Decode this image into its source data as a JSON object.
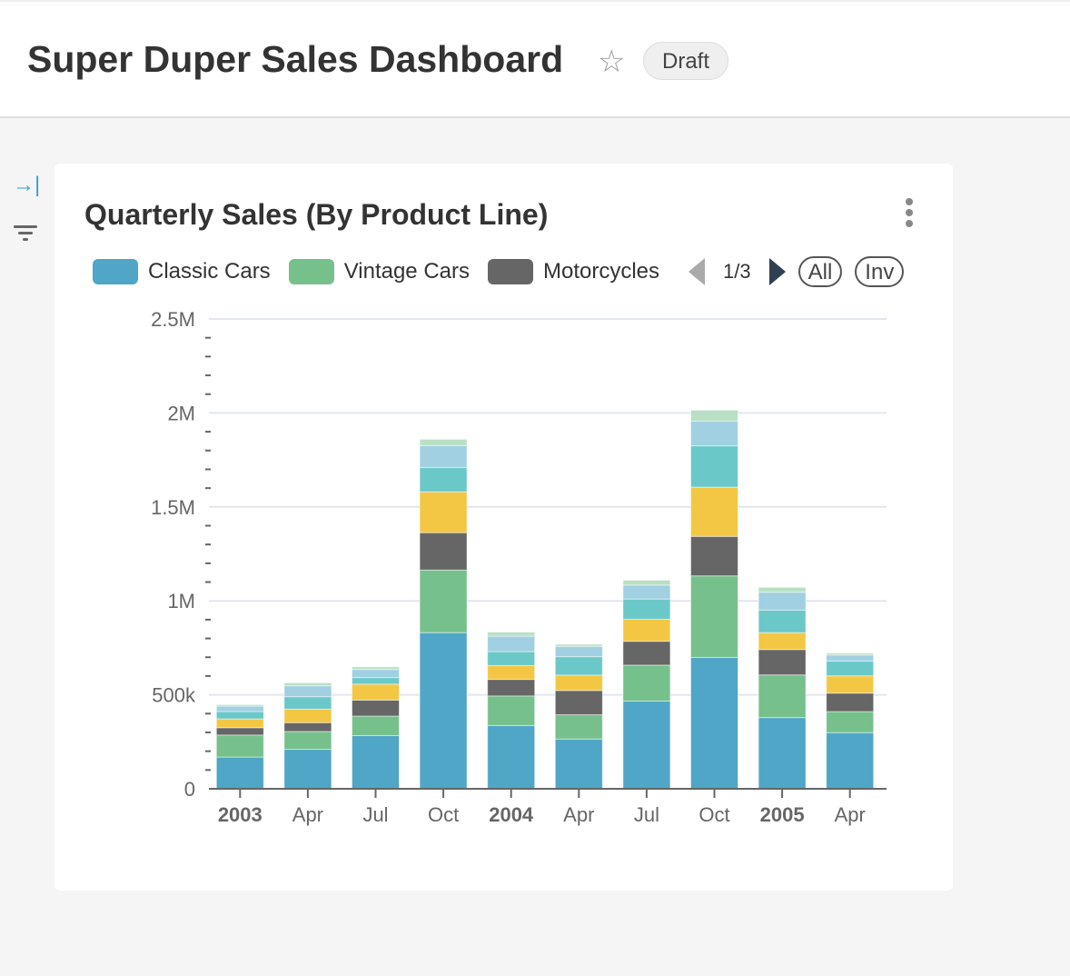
{
  "header": {
    "title": "Super Duper Sales Dashboard",
    "favorite_icon": "star-outline",
    "status_badge": "Draft"
  },
  "sidebar": {
    "collapse_icon": "arrow-to-right",
    "filter_icon": "filter"
  },
  "chart_card": {
    "menu_icon": "vertical-dots",
    "legend": {
      "page": "1/3",
      "all_label": "All",
      "inv_label": "Inv"
    }
  },
  "chart_data": {
    "type": "bar",
    "stacked": true,
    "title": "Quarterly Sales (By Product Line)",
    "categories": [
      "2003",
      "Apr",
      "Jul",
      "Oct",
      "2004",
      "Apr",
      "Jul",
      "Oct",
      "2005",
      "Apr"
    ],
    "bold_categories": [
      "2003",
      "2004",
      "2005"
    ],
    "ylim": [
      0,
      2500000
    ],
    "yticks": [
      {
        "v": 0,
        "label": "0"
      },
      {
        "v": 500000,
        "label": "500k"
      },
      {
        "v": 1000000,
        "label": "1M"
      },
      {
        "v": 1500000,
        "label": "1.5M"
      },
      {
        "v": 2000000,
        "label": "2M"
      },
      {
        "v": 2500000,
        "label": "2.5M"
      }
    ],
    "grid": true,
    "legend_position": "top",
    "series": [
      {
        "name": "Classic Cars",
        "color": "#4fa6c6",
        "values": [
          169000,
          210000,
          283000,
          831000,
          337000,
          265000,
          467000,
          699000,
          379000,
          299000
        ]
      },
      {
        "name": "Vintage Cars",
        "color": "#76c08b",
        "values": [
          117000,
          95000,
          104000,
          333000,
          157000,
          129000,
          191000,
          434000,
          227000,
          112000
        ]
      },
      {
        "name": "Motorcycles",
        "color": "#666666",
        "values": [
          39000,
          47000,
          85000,
          199000,
          88000,
          129000,
          127000,
          210000,
          135000,
          98000
        ]
      },
      {
        "color": "#f3c744",
        "values": [
          47000,
          72000,
          85000,
          217000,
          74000,
          82000,
          117000,
          262000,
          90000,
          92000
        ]
      },
      {
        "color": "#6bc8c9",
        "values": [
          39000,
          66000,
          35000,
          130000,
          74000,
          98000,
          108000,
          220000,
          120000,
          79000
        ]
      },
      {
        "color": "#a0d0e1",
        "values": [
          29000,
          58000,
          43000,
          116000,
          82000,
          55000,
          74000,
          132000,
          95000,
          32000
        ]
      },
      {
        "color": "#b9e0c5",
        "values": [
          8000,
          16000,
          14000,
          34000,
          22000,
          11000,
          26000,
          58000,
          26000,
          10000
        ]
      }
    ]
  }
}
